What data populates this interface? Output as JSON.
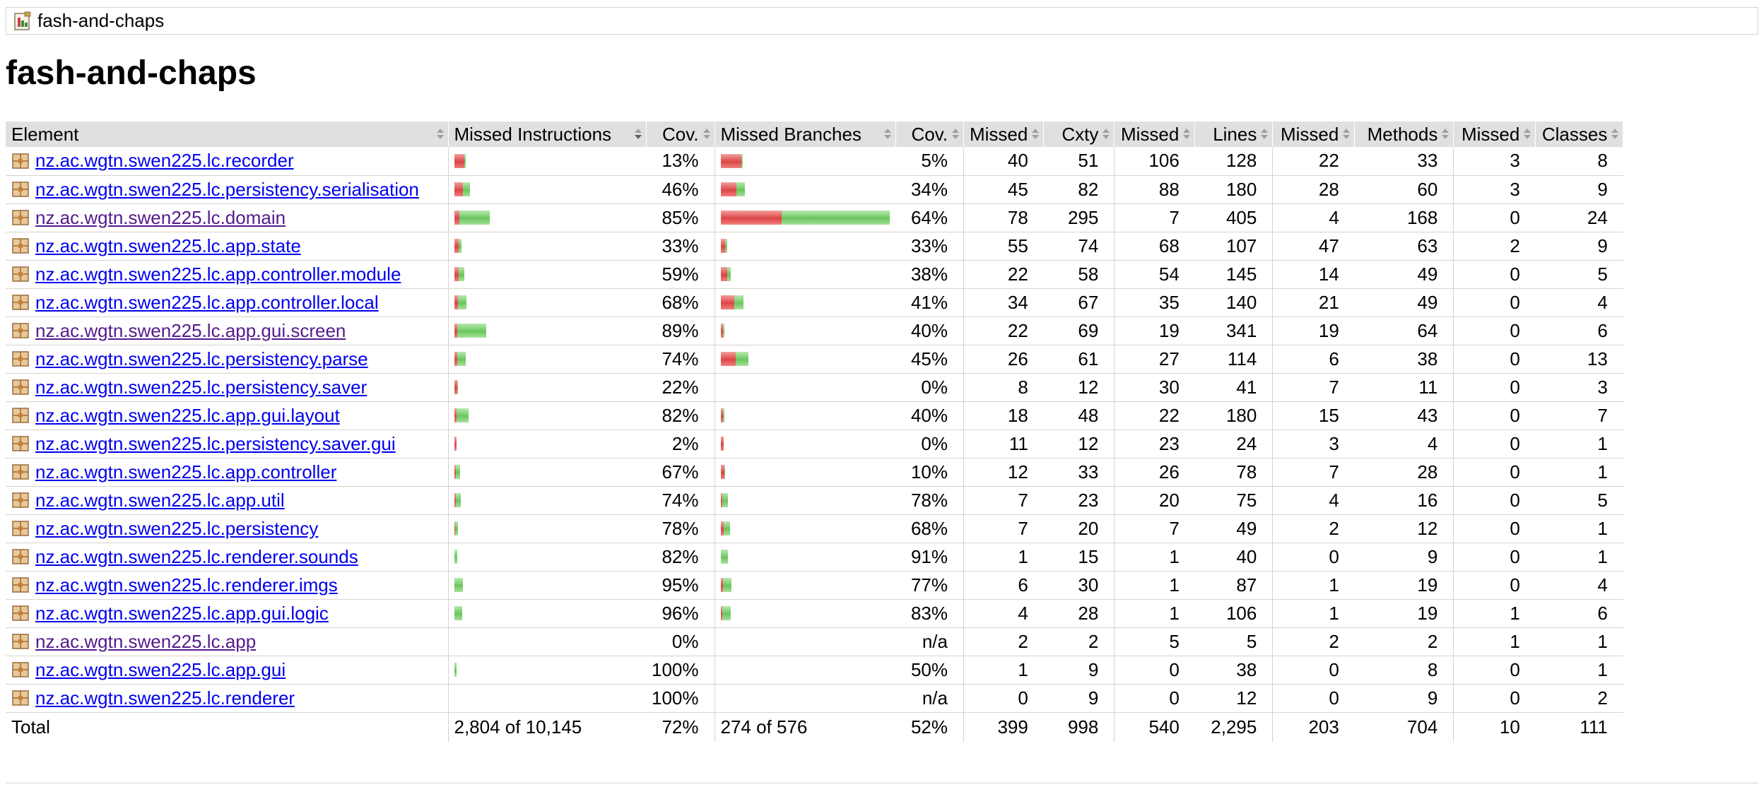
{
  "breadcrumb": {
    "label": "fash-and-chaps",
    "icon": "report-icon"
  },
  "page_title": "fash-and-chaps",
  "columns": [
    "Element",
    "Missed Instructions",
    "Cov.",
    "Missed Branches",
    "Cov.",
    "Missed",
    "Cxty",
    "Missed",
    "Lines",
    "Missed",
    "Methods",
    "Missed",
    "Classes"
  ],
  "colors": {
    "missed": "#dc4545",
    "covered": "#6ac55c",
    "link": "#0000ee",
    "visited": "#551a8b"
  },
  "rows": [
    {
      "name": "nz.ac.wgtn.swen225.lc.recorder",
      "visited": false,
      "instr_missed_frac": 0.0611,
      "instr_covered_frac": 0.0092,
      "instr_cov": "13%",
      "br_missed_frac": 0.1238,
      "br_covered_frac": 0.0065,
      "br_cov": "5%",
      "cx_missed": "40",
      "cx": "51",
      "ln_missed": "106",
      "ln": "128",
      "mt_missed": "22",
      "mt": "33",
      "cl_missed": "3",
      "cl": "8"
    },
    {
      "name": "nz.ac.wgtn.swen225.lc.persistency.serialisation",
      "visited": false,
      "instr_missed_frac": 0.0514,
      "instr_covered_frac": 0.0437,
      "instr_cov": "46%",
      "br_missed_frac": 0.0953,
      "br_covered_frac": 0.0491,
      "br_cov": "34%",
      "cx_missed": "45",
      "cx": "82",
      "ln_missed": "88",
      "ln": "180",
      "mt_missed": "28",
      "mt": "60",
      "cl_missed": "3",
      "cl": "9"
    },
    {
      "name": "nz.ac.wgtn.swen225.lc.domain",
      "visited": true,
      "instr_missed_frac": 0.0311,
      "instr_covered_frac": 0.1773,
      "instr_cov": "85%",
      "br_missed_frac": 0.3609,
      "br_covered_frac": 0.6391,
      "br_cov": "64%",
      "cx_missed": "78",
      "cx": "295",
      "ln_missed": "7",
      "ln": "405",
      "mt_missed": "4",
      "mt": "168",
      "cl_missed": "0",
      "cl": "24"
    },
    {
      "name": "nz.ac.wgtn.swen225.lc.app.state",
      "visited": false,
      "instr_missed_frac": 0.0284,
      "instr_covered_frac": 0.014,
      "instr_cov": "33%",
      "br_missed_frac": 0.0276,
      "br_covered_frac": 0.0138,
      "br_cov": "33%",
      "cx_missed": "55",
      "cx": "74",
      "ln_missed": "68",
      "ln": "107",
      "mt_missed": "47",
      "mt": "63",
      "cl_missed": "2",
      "cl": "9"
    },
    {
      "name": "nz.ac.wgtn.swen225.lc.app.controller.module",
      "visited": false,
      "instr_missed_frac": 0.0252,
      "instr_covered_frac": 0.0363,
      "instr_cov": "59%",
      "br_missed_frac": 0.0376,
      "br_covered_frac": 0.0231,
      "br_cov": "38%",
      "cx_missed": "22",
      "cx": "58",
      "ln_missed": "54",
      "ln": "145",
      "mt_missed": "14",
      "mt": "49",
      "cl_missed": "0",
      "cl": "5"
    },
    {
      "name": "nz.ac.wgtn.swen225.lc.app.controller.local",
      "visited": false,
      "instr_missed_frac": 0.0232,
      "instr_covered_frac": 0.0493,
      "instr_cov": "68%",
      "br_missed_frac": 0.0811,
      "br_covered_frac": 0.0563,
      "br_cov": "41%",
      "cx_missed": "34",
      "cx": "67",
      "ln_missed": "35",
      "ln": "140",
      "mt_missed": "21",
      "mt": "49",
      "cl_missed": "0",
      "cl": "4"
    },
    {
      "name": "nz.ac.wgtn.swen225.lc.app.gui.screen",
      "visited": true,
      "instr_missed_frac": 0.0207,
      "instr_covered_frac": 0.1674,
      "instr_cov": "89%",
      "br_missed_frac": 0.0133,
      "br_covered_frac": 0.0089,
      "br_cov": "40%",
      "cx_missed": "22",
      "cx": "69",
      "ln_missed": "19",
      "ln": "341",
      "mt_missed": "19",
      "mt": "64",
      "cl_missed": "0",
      "cl": "6"
    },
    {
      "name": "nz.ac.wgtn.swen225.lc.persistency.parse",
      "visited": false,
      "instr_missed_frac": 0.0181,
      "instr_covered_frac": 0.051,
      "instr_cov": "74%",
      "br_missed_frac": 0.09,
      "br_covered_frac": 0.0736,
      "br_cov": "45%",
      "cx_missed": "26",
      "cx": "61",
      "ln_missed": "27",
      "ln": "114",
      "mt_missed": "6",
      "mt": "38",
      "cl_missed": "0",
      "cl": "13"
    },
    {
      "name": "nz.ac.wgtn.swen225.lc.persistency.saver",
      "visited": false,
      "instr_missed_frac": 0.0176,
      "instr_covered_frac": 0.005,
      "instr_cov": "22%",
      "br_missed_frac": 0,
      "br_covered_frac": 0,
      "br_cov": "0%",
      "cx_missed": "8",
      "cx": "12",
      "ln_missed": "30",
      "ln": "41",
      "mt_missed": "7",
      "mt": "11",
      "cl_missed": "0",
      "cl": "3"
    },
    {
      "name": "nz.ac.wgtn.swen225.lc.app.gui.layout",
      "visited": false,
      "instr_missed_frac": 0.0155,
      "instr_covered_frac": 0.0708,
      "instr_cov": "82%",
      "br_missed_frac": 0.0133,
      "br_covered_frac": 0.0089,
      "br_cov": "40%",
      "cx_missed": "18",
      "cx": "48",
      "ln_missed": "22",
      "ln": "180",
      "mt_missed": "15",
      "mt": "43",
      "cl_missed": "0",
      "cl": "7"
    },
    {
      "name": "nz.ac.wgtn.swen225.lc.persistency.saver.gui",
      "visited": false,
      "instr_missed_frac": 0.013,
      "instr_covered_frac": 0.0003,
      "instr_cov": "2%",
      "br_missed_frac": 0.02,
      "br_covered_frac": 0,
      "br_cov": "0%",
      "cx_missed": "11",
      "cx": "12",
      "ln_missed": "23",
      "ln": "24",
      "mt_missed": "3",
      "mt": "4",
      "cl_missed": "0",
      "cl": "1"
    },
    {
      "name": "nz.ac.wgtn.swen225.lc.app.controller",
      "visited": false,
      "instr_missed_frac": 0.0116,
      "instr_covered_frac": 0.0236,
      "instr_cov": "67%",
      "br_missed_frac": 0.0225,
      "br_covered_frac": 0.0025,
      "br_cov": "10%",
      "cx_missed": "12",
      "cx": "33",
      "ln_missed": "26",
      "ln": "78",
      "mt_missed": "7",
      "mt": "28",
      "cl_missed": "0",
      "cl": "1"
    },
    {
      "name": "nz.ac.wgtn.swen225.lc.app.util",
      "visited": false,
      "instr_missed_frac": 0.0101,
      "instr_covered_frac": 0.0288,
      "instr_cov": "74%",
      "br_missed_frac": 0.01,
      "br_covered_frac": 0.035,
      "br_cov": "78%",
      "cx_missed": "7",
      "cx": "23",
      "ln_missed": "20",
      "ln": "75",
      "mt_missed": "4",
      "mt": "16",
      "cl_missed": "0",
      "cl": "5"
    },
    {
      "name": "nz.ac.wgtn.swen225.lc.persistency",
      "visited": false,
      "instr_missed_frac": 0.0053,
      "instr_covered_frac": 0.0187,
      "instr_cov": "78%",
      "br_missed_frac": 0.0175,
      "br_covered_frac": 0.0375,
      "br_cov": "68%",
      "cx_missed": "7",
      "cx": "20",
      "ln_missed": "7",
      "ln": "49",
      "mt_missed": "2",
      "mt": "12",
      "cl_missed": "0",
      "cl": "1"
    },
    {
      "name": "nz.ac.wgtn.swen225.lc.renderer.sounds",
      "visited": false,
      "instr_missed_frac": 0.0035,
      "instr_covered_frac": 0.0162,
      "instr_cov": "82%",
      "br_missed_frac": 0.0038,
      "br_covered_frac": 0.0387,
      "br_cov": "91%",
      "cx_missed": "1",
      "cx": "15",
      "ln_missed": "1",
      "ln": "40",
      "mt_missed": "0",
      "mt": "9",
      "cl_missed": "0",
      "cl": "1"
    },
    {
      "name": "nz.ac.wgtn.swen225.lc.renderer.imgs",
      "visited": false,
      "instr_missed_frac": 0.0027,
      "instr_covered_frac": 0.0513,
      "instr_cov": "95%",
      "br_missed_frac": 0.015,
      "br_covered_frac": 0.05,
      "br_cov": "77%",
      "cx_missed": "6",
      "cx": "30",
      "ln_missed": "1",
      "ln": "87",
      "mt_missed": "1",
      "mt": "19",
      "cl_missed": "0",
      "cl": "4"
    },
    {
      "name": "nz.ac.wgtn.swen225.lc.app.gui.logic",
      "visited": false,
      "instr_missed_frac": 0.0017,
      "instr_covered_frac": 0.0483,
      "instr_cov": "96%",
      "br_missed_frac": 0.01,
      "br_covered_frac": 0.05,
      "br_cov": "83%",
      "cx_missed": "4",
      "cx": "28",
      "ln_missed": "1",
      "ln": "106",
      "mt_missed": "1",
      "mt": "19",
      "cl_missed": "1",
      "cl": "6"
    },
    {
      "name": "nz.ac.wgtn.swen225.lc.app",
      "visited": true,
      "instr_missed_frac": 0,
      "instr_covered_frac": 0,
      "instr_cov": "0%",
      "br_missed_frac": 0,
      "br_covered_frac": 0,
      "br_cov": "n/a",
      "cx_missed": "2",
      "cx": "2",
      "ln_missed": "5",
      "ln": "5",
      "mt_missed": "2",
      "mt": "2",
      "cl_missed": "1",
      "cl": "1"
    },
    {
      "name": "nz.ac.wgtn.swen225.lc.app.gui",
      "visited": false,
      "instr_missed_frac": 0,
      "instr_covered_frac": 0.016,
      "instr_cov": "100%",
      "br_missed_frac": 0,
      "br_covered_frac": 0,
      "br_cov": "50%",
      "cx_missed": "1",
      "cx": "9",
      "ln_missed": "0",
      "ln": "38",
      "mt_missed": "0",
      "mt": "8",
      "cl_missed": "0",
      "cl": "1"
    },
    {
      "name": "nz.ac.wgtn.swen225.lc.renderer",
      "visited": false,
      "instr_missed_frac": 0,
      "instr_covered_frac": 0.002,
      "instr_cov": "100%",
      "br_missed_frac": 0,
      "br_covered_frac": 0,
      "br_cov": "n/a",
      "cx_missed": "0",
      "cx": "9",
      "ln_missed": "0",
      "ln": "12",
      "mt_missed": "0",
      "mt": "9",
      "cl_missed": "0",
      "cl": "2"
    }
  ],
  "total": {
    "label": "Total",
    "instr": "2,804 of 10,145",
    "instr_cov": "72%",
    "br": "274 of 576",
    "br_cov": "52%",
    "cx_missed": "399",
    "cx": "998",
    "ln_missed": "540",
    "ln": "2,295",
    "mt_missed": "203",
    "mt": "704",
    "cl_missed": "10",
    "cl": "111"
  }
}
